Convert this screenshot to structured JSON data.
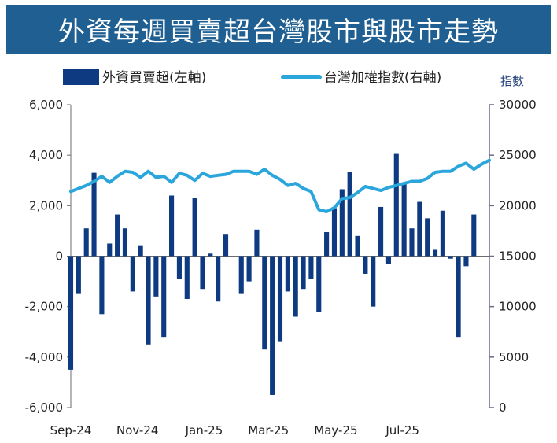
{
  "chart_data": {
    "type": "bar+line",
    "title": "外資每週買賣超台灣股市與股市走勢",
    "colors": {
      "bars": "#0d3a80",
      "line": "#2aa6dc",
      "title_bg": "#1f5f92"
    },
    "legend": {
      "placement": "top",
      "bars_label": "外資買賣超(左軸)",
      "line_label": "台灣加權指數(右軸)"
    },
    "y_left": {
      "ylim": [
        -6000,
        6000
      ],
      "ticks": [
        -6000,
        -4000,
        -2000,
        0,
        2000,
        4000,
        6000
      ],
      "tick_labels": [
        "-6,000",
        "-4,000",
        "-2,000",
        "0",
        "2,000",
        "4,000",
        "6,000"
      ]
    },
    "y_right": {
      "label": "指數",
      "ylim": [
        0,
        30000
      ],
      "ticks": [
        0,
        5000,
        10000,
        15000,
        20000,
        25000,
        30000
      ],
      "tick_labels": [
        "0",
        "5000",
        "10000",
        "15000",
        "20000",
        "25000",
        "30000"
      ]
    },
    "x_ticks": [
      {
        "week": 0,
        "label": "Sep-24"
      },
      {
        "week": 8.6,
        "label": "Nov-24"
      },
      {
        "week": 17.2,
        "label": "Jan-25"
      },
      {
        "week": 25.5,
        "label": "Mar-25"
      },
      {
        "week": 34.2,
        "label": "May-25"
      },
      {
        "week": 42.8,
        "label": "Jul-25"
      }
    ],
    "bars": [
      -4500,
      -1500,
      1100,
      3300,
      -2300,
      500,
      1650,
      1100,
      -1400,
      400,
      -3500,
      -1600,
      -3200,
      2400,
      -900,
      -1700,
      2300,
      -1300,
      100,
      -1800,
      850,
      0,
      -1500,
      -1000,
      1050,
      -3700,
      -5500,
      -3400,
      -1400,
      -2400,
      -1300,
      -900,
      -2200,
      950,
      1900,
      2650,
      3350,
      800,
      -700,
      -2000,
      1950,
      -300,
      4050,
      2900,
      1100,
      2150,
      1500,
      250,
      1800,
      -100,
      -3200,
      -400,
      1650
    ],
    "line": [
      21400,
      21700,
      22000,
      22400,
      22900,
      22300,
      22900,
      23400,
      23300,
      22800,
      23400,
      22800,
      22900,
      22300,
      23200,
      23000,
      22500,
      23200,
      22900,
      23000,
      23100,
      23400,
      23400,
      23400,
      23100,
      23600,
      23000,
      22600,
      22000,
      22200,
      21700,
      21400,
      19600,
      19400,
      19800,
      20700,
      20800,
      21300,
      21900,
      21700,
      21500,
      21800,
      22000,
      22200,
      22400,
      22400,
      22700,
      23300,
      23400,
      23400,
      23900,
      24200,
      23600,
      24100,
      24500
    ]
  }
}
